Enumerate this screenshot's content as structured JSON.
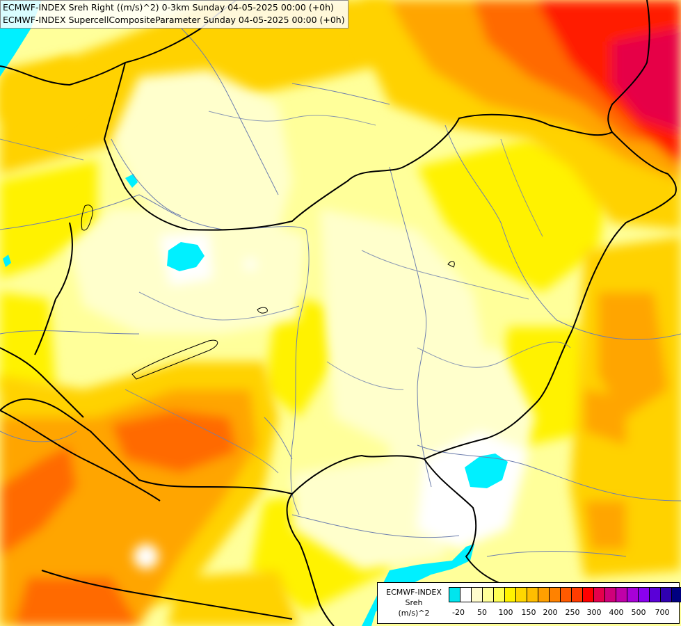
{
  "titles": {
    "line1": "ECMWF-INDEX Sreh Right ((m/s)^2) 0-3km Sunday 04-05-2025 00:00 (+0h)",
    "line2": "ECMWF-INDEX SupercellCompositeParameter Sunday 04-05-2025 00:00 (+0h)"
  },
  "legend": {
    "title_line1": "ECMWF-INDEX",
    "title_line2": "Sreh",
    "title_line3": "(m/s)^2",
    "swatch_colors": [
      "#00e5ee",
      "#ffffff",
      "#fffccc",
      "#ffff99",
      "#ffff55",
      "#fff200",
      "#ffd700",
      "#ffbe00",
      "#ffa000",
      "#ff8200",
      "#ff5a00",
      "#ff3c00",
      "#ff0000",
      "#e6004c",
      "#d0007a",
      "#c000a8",
      "#a800d8",
      "#8a00f0",
      "#5a00d8",
      "#3000b0",
      "#000080"
    ],
    "ticks": [
      "-20",
      "50",
      "100",
      "150",
      "200",
      "250",
      "300",
      "400",
      "500",
      "700"
    ]
  },
  "palette": {
    "background": "#ffff9a",
    "pale": "#ffffcc",
    "yellow": "#fff200",
    "gold": "#ffd200",
    "orange": "#ffa500",
    "dark_orange": "#ff6a00",
    "red": "#ff1e00",
    "crimson": "#e60046",
    "cyan": "#00f0ff",
    "white": "#ffffff",
    "border": "#000000",
    "river": "#6e7fae"
  }
}
